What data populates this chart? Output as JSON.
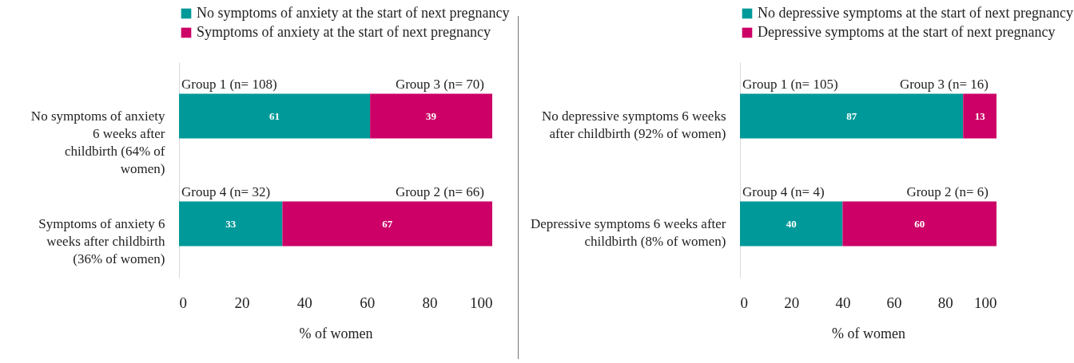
{
  "chart_data": [
    {
      "type": "bar",
      "orientation": "horizontal",
      "stacked": true,
      "data_labels": true,
      "grid": false,
      "legend": "top",
      "categories": [
        "No symptoms of anxiety 6 weeks after childbirth (64% of women)",
        "Symptoms of anxiety 6 weeks after childbirth (36% of women)"
      ],
      "series": [
        {
          "name": "No symptoms of anxiety at the start of next pregnancy",
          "color": "#009999",
          "values": [
            61,
            33
          ]
        },
        {
          "name": "Symptoms of anxiety at the start of next pregnancy",
          "color": "#cc0066",
          "values": [
            39,
            67
          ]
        }
      ],
      "xlim": [
        0,
        100
      ],
      "xticks": [
        0,
        20,
        40,
        60,
        80,
        100
      ],
      "xlabel": "% of women",
      "annotations": [
        "Group 1 (n= 108)",
        "Group 3 (n= 70)",
        "Group 4 (n= 32)",
        "Group 2 (n= 66)"
      ]
    },
    {
      "type": "bar",
      "orientation": "horizontal",
      "stacked": true,
      "data_labels": true,
      "grid": false,
      "legend": "top",
      "categories": [
        "No depressive symptoms 6 weeks after childbirth (92% of women)",
        "Depressive symptoms 6 weeks after childbirth (8% of women)"
      ],
      "series": [
        {
          "name": "No depressive symptoms at the start of next pregnancy",
          "color": "#009999",
          "values": [
            87,
            40
          ]
        },
        {
          "name": "Depressive symptoms at the start of next pregnancy",
          "color": "#cc0066",
          "values": [
            13,
            60
          ]
        }
      ],
      "xlim": [
        0,
        100
      ],
      "xticks": [
        0,
        20,
        40,
        60,
        80,
        100
      ],
      "xlabel": "% of women",
      "annotations": [
        "Group 1 (n= 105)",
        "Group 3 (n= 16)",
        "Group 4 (n= 4)",
        "Group 2 (n= 6)"
      ]
    }
  ]
}
